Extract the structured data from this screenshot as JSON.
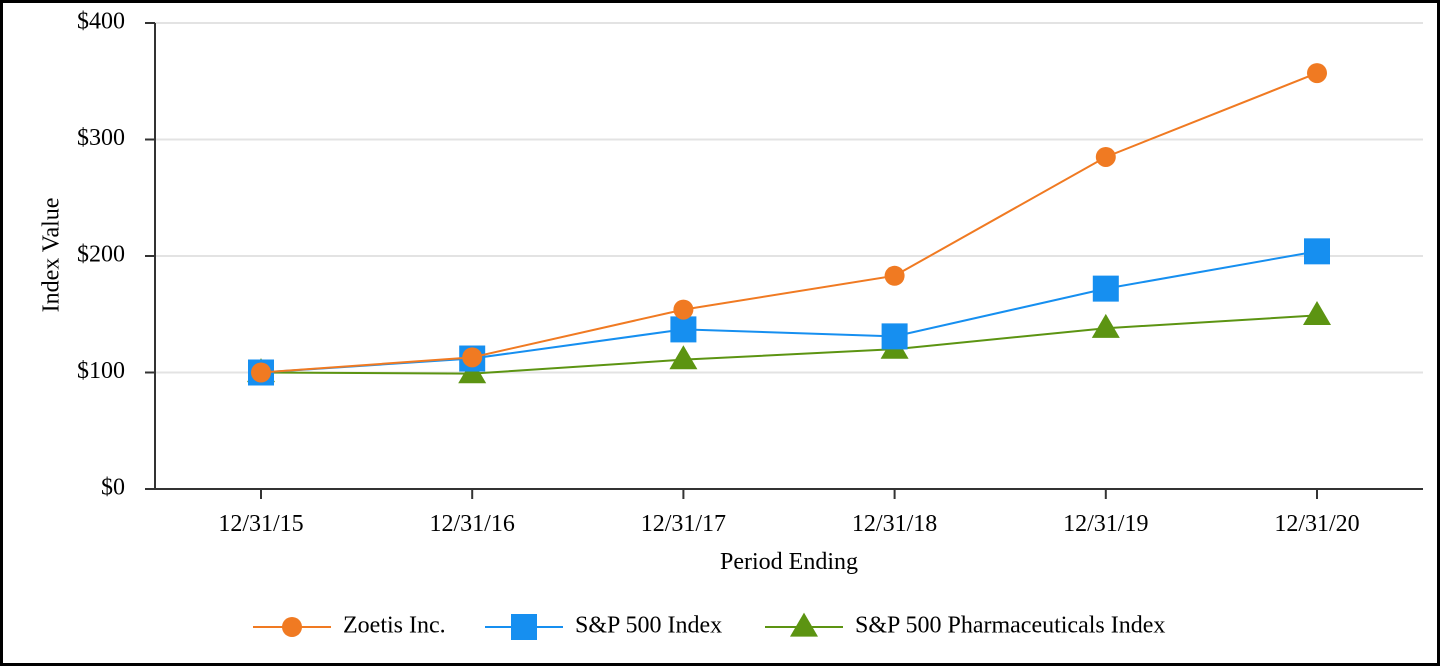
{
  "chart_data": {
    "type": "line",
    "title": "",
    "xlabel": "Period Ending",
    "ylabel": "Index Value",
    "categories": [
      "12/31/15",
      "12/31/16",
      "12/31/17",
      "12/31/18",
      "12/31/19",
      "12/31/20"
    ],
    "ylim": [
      0,
      400
    ],
    "yticks": [
      0,
      100,
      200,
      300,
      400
    ],
    "ytick_labels": [
      "$0",
      "$100",
      "$200",
      "$300",
      "$400"
    ],
    "grid": true,
    "legend_position": "bottom",
    "series": [
      {
        "name": "Zoetis Inc.",
        "marker": "circle",
        "color": "#f07a22",
        "values": [
          100,
          113,
          154,
          183,
          285,
          357
        ]
      },
      {
        "name": "S&P 500 Index",
        "marker": "square",
        "color": "#168ff0",
        "values": [
          100,
          112,
          137,
          131,
          172,
          204
        ]
      },
      {
        "name": "S&P 500 Pharmaceuticals Index",
        "marker": "triangle",
        "color": "#5c9412",
        "values": [
          100,
          99,
          111,
          120,
          138,
          149
        ]
      }
    ]
  }
}
